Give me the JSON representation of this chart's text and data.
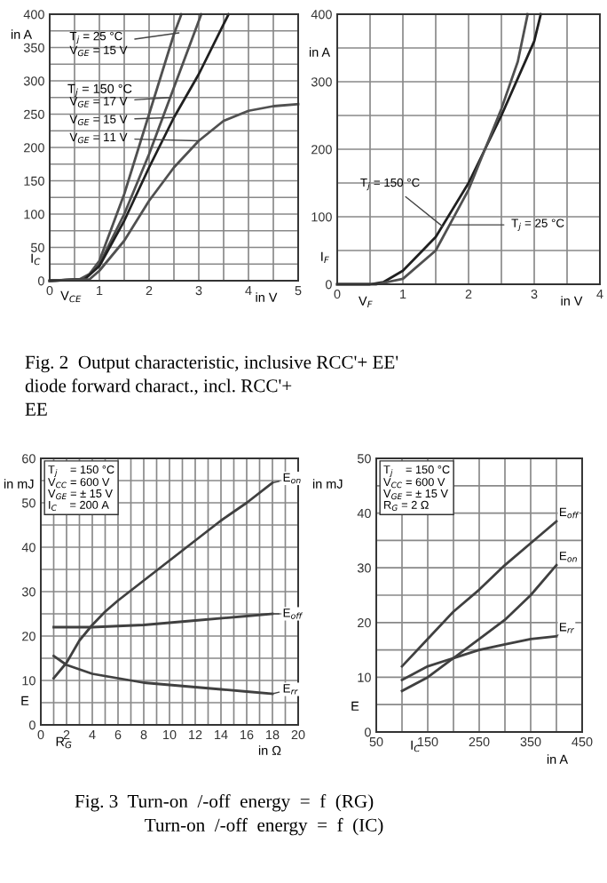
{
  "chart_data": [
    {
      "type": "line",
      "xlabel": "V$_{CE}$",
      "ylabel": "I$_{C}$",
      "grid": true,
      "marker": "none",
      "line_style": "solid",
      "xlim": [
        0,
        5
      ],
      "xticks": [
        0,
        {
          "value": 0.5,
          "label": null
        },
        1,
        {
          "value": 1.5,
          "label": null
        },
        2,
        {
          "value": 2.5,
          "label": null
        },
        3,
        {
          "value": 3.5,
          "label": null
        },
        4,
        {
          "value": 4.5,
          "label": null
        },
        5
      ],
      "ylim": [
        0,
        400
      ],
      "yticks": [
        0,
        {
          "value": 25,
          "label": null
        },
        50,
        {
          "value": 75,
          "label": null
        },
        100,
        {
          "value": 125,
          "label": null
        },
        150,
        {
          "value": 175,
          "label": null
        },
        200,
        {
          "value": 225,
          "label": null
        },
        250,
        {
          "value": 275,
          "label": null
        },
        300,
        {
          "value": 325,
          "label": null
        },
        350,
        {
          "value": 375,
          "label": null
        },
        400
      ],
      "series": [
        {
          "color": "#505050",
          "x": [
            0,
            0.6,
            0.8,
            1,
            1.5,
            2,
            2.5,
            2.65
          ],
          "values": [
            0,
            2,
            10,
            30,
            130,
            250,
            370,
            400
          ]
        },
        {
          "color": "#505050",
          "x": [
            0,
            0.7,
            1,
            1.5,
            2,
            2.5,
            3.05
          ],
          "values": [
            0,
            2,
            25,
            100,
            190,
            290,
            400
          ]
        },
        {
          "color": "#202020",
          "x": [
            0,
            0.7,
            1,
            1.5,
            2,
            2.5,
            3,
            3.6
          ],
          "values": [
            0,
            2,
            22,
            90,
            170,
            245,
            310,
            400
          ]
        },
        {
          "color": "#505050",
          "x": [
            0,
            0.8,
            1,
            1.5,
            2,
            2.5,
            3,
            3.5,
            4,
            4.5,
            5
          ],
          "values": [
            0,
            2,
            15,
            60,
            120,
            170,
            210,
            240,
            255,
            262,
            265
          ]
        }
      ],
      "annotations": [
        "in A",
        "in V",
        "T$_{j}$ = 150 °C",
        {
          "text": "T$_{j}$ = 25 °C\nV$_{GE}$ = 15 V",
          "x": 2.6,
          "y": 372
        },
        "V$_{GE}$ = 17 V",
        "V$_{GE}$ = 15 V",
        {
          "text": "V$_{GE}$ = 11 V",
          "x": 3.0,
          "y": 210
        },
        "Fig. 2  Output characteristic, inclusive RCC'+ EE'\ndiode forward charact., incl. RCC'+\nEE"
      ]
    },
    {
      "type": "line",
      "xlabel": "V$_{F}$",
      "ylabel": "I$_{F}$",
      "grid": true,
      "marker": "none",
      "line_style": "solid",
      "xlim": [
        0,
        4
      ],
      "xticks": [
        0,
        {
          "value": 0.5,
          "label": null
        },
        1,
        {
          "value": 1.5,
          "label": null
        },
        2,
        {
          "value": 2.5,
          "label": null
        },
        3,
        {
          "value": 3.5,
          "label": null
        },
        4
      ],
      "ylim": [
        0,
        400
      ],
      "yticks": [
        0,
        {
          "value": 50,
          "label": null
        },
        100,
        {
          "value": 150,
          "label": null
        },
        200,
        {
          "value": 250,
          "label": null
        },
        300,
        {
          "value": 350,
          "label": null
        },
        400
      ],
      "series": [
        {
          "color": "#202020",
          "x": [
            0,
            0.5,
            0.7,
            1,
            1.5,
            2,
            2.5,
            3,
            3.1
          ],
          "values": [
            0,
            0,
            3,
            20,
            70,
            150,
            250,
            360,
            400
          ]
        },
        {
          "color": "#505050",
          "x": [
            0,
            0.6,
            1,
            1.5,
            2,
            2.5,
            2.75,
            2.9
          ],
          "values": [
            0,
            0,
            8,
            50,
            140,
            260,
            330,
            400
          ]
        }
      ],
      "annotations": [
        "in A",
        "in V",
        {
          "text": "T$_{j}$ = 150 °C",
          "x": 1.6,
          "y": 86
        },
        "T$_{j}$ = 25 °C"
      ]
    },
    {
      "type": "line",
      "xlabel": "R$_{G}$",
      "ylabel": "E",
      "grid": true,
      "marker": "none",
      "line_style": "solid",
      "xlim": [
        0,
        20
      ],
      "xticks": [
        0,
        {
          "value": 1,
          "label": null
        },
        2,
        {
          "value": 3,
          "label": null
        },
        4,
        {
          "value": 5,
          "label": null
        },
        6,
        {
          "value": 7,
          "label": null
        },
        8,
        {
          "value": 9,
          "label": null
        },
        10,
        {
          "value": 11,
          "label": null
        },
        12,
        {
          "value": 13,
          "label": null
        },
        14,
        {
          "value": 15,
          "label": null
        },
        16,
        {
          "value": 17,
          "label": null
        },
        18,
        {
          "value": 19,
          "label": null
        },
        20
      ],
      "ylim": [
        0,
        60
      ],
      "yticks": [
        0,
        {
          "value": 5,
          "label": null
        },
        10,
        {
          "value": 15,
          "label": null
        },
        20,
        {
          "value": 25,
          "label": null
        },
        30,
        {
          "value": 35,
          "label": null
        },
        40,
        {
          "value": 45,
          "label": null
        },
        50,
        {
          "value": 55,
          "label": null
        },
        60
      ],
      "series": [
        {
          "color": "#404040",
          "x": [
            1,
            2,
            3,
            4,
            5,
            6,
            8,
            10,
            12,
            14,
            16,
            18
          ],
          "values": [
            10.5,
            14,
            19,
            22.5,
            25.5,
            28,
            32.5,
            37,
            41.5,
            46,
            50,
            54.5
          ]
        },
        {
          "color": "#404040",
          "x": [
            1,
            4,
            8,
            12,
            16,
            18
          ],
          "values": [
            22,
            22,
            22.5,
            23.5,
            24.5,
            25
          ]
        },
        {
          "color": "#404040",
          "x": [
            1,
            2,
            4,
            6,
            8,
            10,
            12,
            14,
            16,
            18
          ],
          "values": [
            15.5,
            13.5,
            11.5,
            10.5,
            9.5,
            9,
            8.5,
            8,
            7.5,
            7
          ]
        }
      ],
      "annotations": [
        "in mJ",
        "in Ω",
        "T$_{j}$    = 150 °C\nV$_{CC}$ = 600 V\nV$_{GE}$ = ± 15 V\nI$_{C}$    = 200 A",
        {
          "text": "E$_{on}$",
          "x": 18,
          "y": 54.5
        },
        {
          "text": "E$_{off}$",
          "x": 18,
          "y": 25
        },
        {
          "text": "E$_{rr}$",
          "x": 18,
          "y": 7
        },
        "Fig. 3  Turn-on  /-off  energy  =  f  (RG)\n               Turn-on  /-off  energy  =  f  (IC)"
      ]
    },
    {
      "type": "line",
      "xlabel": "I$_{C}$",
      "ylabel": "E",
      "grid": true,
      "marker": "none",
      "line_style": "solid",
      "xlim": [
        50,
        450
      ],
      "xticks": [
        50,
        {
          "value": 100,
          "label": null
        },
        150,
        {
          "value": 200,
          "label": null
        },
        250,
        {
          "value": 300,
          "label": null
        },
        350,
        {
          "value": 400,
          "label": null
        },
        450
      ],
      "ylim": [
        0,
        50
      ],
      "yticks": [
        0,
        {
          "value": 5,
          "label": null
        },
        10,
        {
          "value": 15,
          "label": null
        },
        20,
        {
          "value": 25,
          "label": null
        },
        30,
        {
          "value": 35,
          "label": null
        },
        40,
        {
          "value": 45,
          "label": null
        },
        50
      ],
      "series": [
        {
          "color": "#404040",
          "x": [
            100,
            150,
            200,
            250,
            300,
            350,
            400
          ],
          "values": [
            12,
            17,
            22,
            26,
            30.5,
            34.5,
            38.5
          ]
        },
        {
          "color": "#404040",
          "x": [
            100,
            150,
            200,
            250,
            300,
            350,
            400
          ],
          "values": [
            7.5,
            10,
            13.5,
            17,
            20.5,
            25,
            30.5
          ]
        },
        {
          "color": "#404040",
          "x": [
            100,
            150,
            200,
            250,
            300,
            350,
            400
          ],
          "values": [
            9.5,
            12,
            13.5,
            15,
            16,
            17,
            17.5
          ]
        }
      ],
      "annotations": [
        "in mJ",
        "in A",
        "T$_{j}$    = 150 °C\nV$_{CC}$ = 600 V\nV$_{GE}$ = ± 15 V\nR$_{G}$ = 2 Ω",
        {
          "text": "E$_{off}$",
          "x": 400,
          "y": 38.5
        },
        {
          "text": "E$_{on}$",
          "x": 400,
          "y": 30.5
        },
        {
          "text": "E$_{rr}$",
          "x": 400,
          "y": 17.5
        }
      ]
    }
  ]
}
